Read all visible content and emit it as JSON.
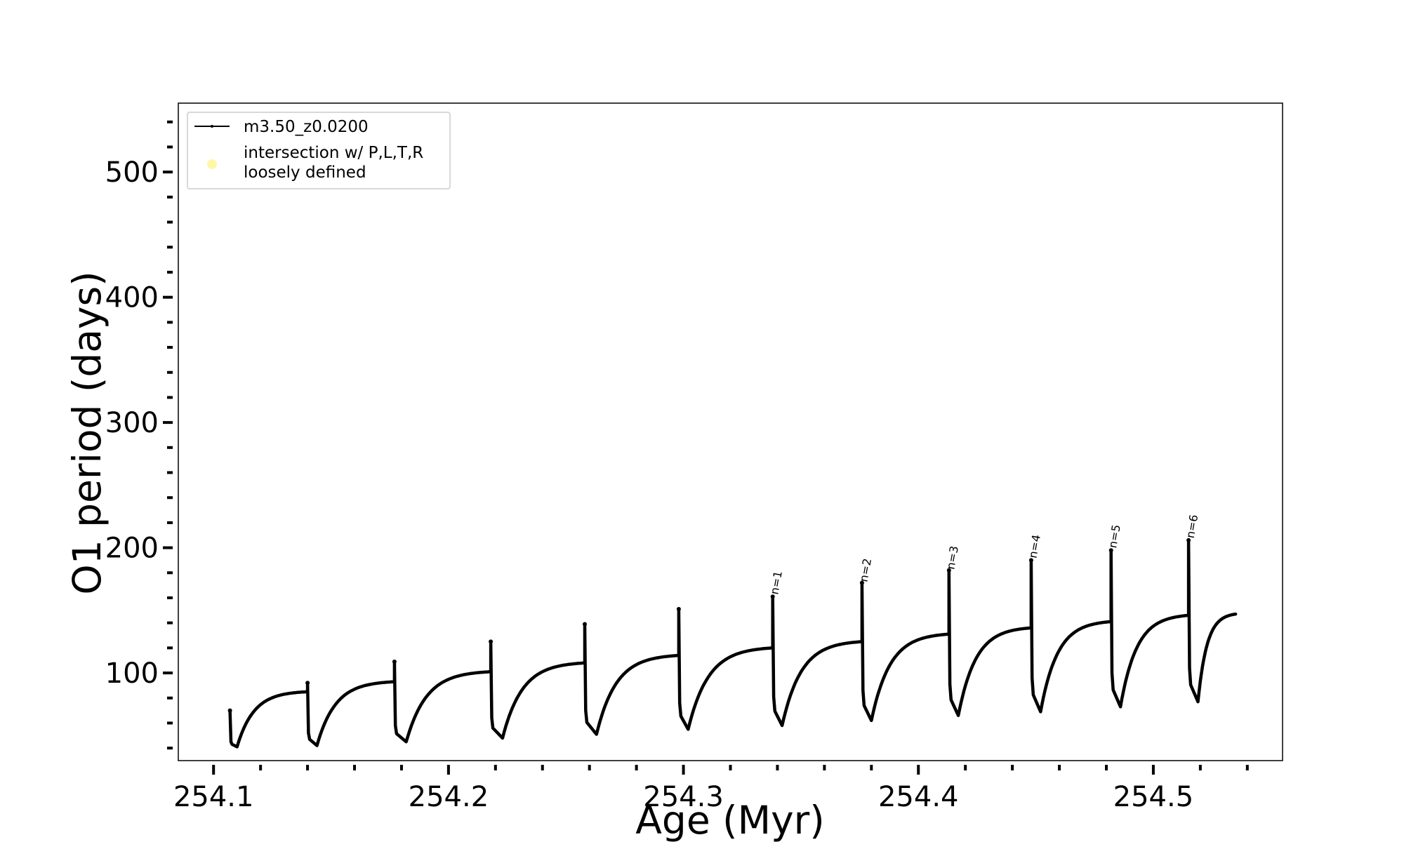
{
  "chart_data": {
    "type": "line",
    "xlabel": "Age (Myr)",
    "ylabel": "O1 period (days)",
    "xlim": [
      254.085,
      254.555
    ],
    "ylim": [
      30,
      555
    ],
    "xticks": [
      254.1,
      254.2,
      254.3,
      254.4,
      254.5
    ],
    "xtick_labels": [
      "254.1",
      "254.2",
      "254.3",
      "254.4",
      "254.5"
    ],
    "yticks": [
      100,
      200,
      300,
      400,
      500
    ],
    "ytick_labels": [
      "100",
      "200",
      "300",
      "400",
      "500"
    ],
    "grid": false,
    "legend": {
      "placement": "upper left",
      "entries": [
        {
          "label": "m3.50_z0.0200",
          "marker": "line",
          "color": "#000000"
        },
        {
          "label_lines": [
            "intersection w/ P,L,T,R",
            "loosely defined"
          ],
          "marker": "circle",
          "color": "#fff7a8"
        }
      ]
    },
    "series": [
      {
        "name": "m3.50_z0.0200",
        "color": "#000000",
        "cycles": [
          {
            "start": 254.107,
            "peak": 70,
            "drop": 45,
            "min_x": 254.11,
            "min_y": 41,
            "end": 254.14,
            "end_y": 85
          },
          {
            "start": 254.14,
            "peak": 92,
            "drop": 52,
            "min_x": 254.144,
            "min_y": 42,
            "end": 254.177,
            "end_y": 93
          },
          {
            "start": 254.177,
            "peak": 109,
            "drop": 58,
            "min_x": 254.182,
            "min_y": 45,
            "end": 254.218,
            "end_y": 101
          },
          {
            "start": 254.218,
            "peak": 125,
            "drop": 64,
            "min_x": 254.223,
            "min_y": 48,
            "end": 254.258,
            "end_y": 108
          },
          {
            "start": 254.258,
            "peak": 139,
            "drop": 70,
            "min_x": 254.263,
            "min_y": 51,
            "end": 254.298,
            "end_y": 114
          },
          {
            "start": 254.298,
            "peak": 151,
            "drop": 76,
            "min_x": 254.302,
            "min_y": 55,
            "end": 254.338,
            "end_y": 120
          },
          {
            "start": 254.338,
            "peak": 161,
            "drop": 81,
            "min_x": 254.342,
            "min_y": 58,
            "end": 254.376,
            "end_y": 125
          },
          {
            "start": 254.376,
            "peak": 172,
            "drop": 86,
            "min_x": 254.38,
            "min_y": 62,
            "end": 254.413,
            "end_y": 131
          },
          {
            "start": 254.413,
            "peak": 182,
            "drop": 91,
            "min_x": 254.417,
            "min_y": 66,
            "end": 254.448,
            "end_y": 136
          },
          {
            "start": 254.448,
            "peak": 190,
            "drop": 96,
            "min_x": 254.452,
            "min_y": 69,
            "end": 254.482,
            "end_y": 141
          },
          {
            "start": 254.482,
            "peak": 198,
            "drop": 100,
            "min_x": 254.486,
            "min_y": 73,
            "end": 254.515,
            "end_y": 146
          },
          {
            "start": 254.515,
            "peak": 206,
            "drop": 104,
            "min_x": 254.519,
            "min_y": 77,
            "end": 254.535,
            "end_y": 147
          }
        ]
      }
    ],
    "annotations": [
      {
        "text": "n=1",
        "x": 254.339,
        "y": 160
      },
      {
        "text": "n=2",
        "x": 254.377,
        "y": 170
      },
      {
        "text": "n=3",
        "x": 254.414,
        "y": 180
      },
      {
        "text": "n=4",
        "x": 254.449,
        "y": 189
      },
      {
        "text": "n=5",
        "x": 254.483,
        "y": 197
      },
      {
        "text": "n=6",
        "x": 254.516,
        "y": 205
      }
    ]
  }
}
